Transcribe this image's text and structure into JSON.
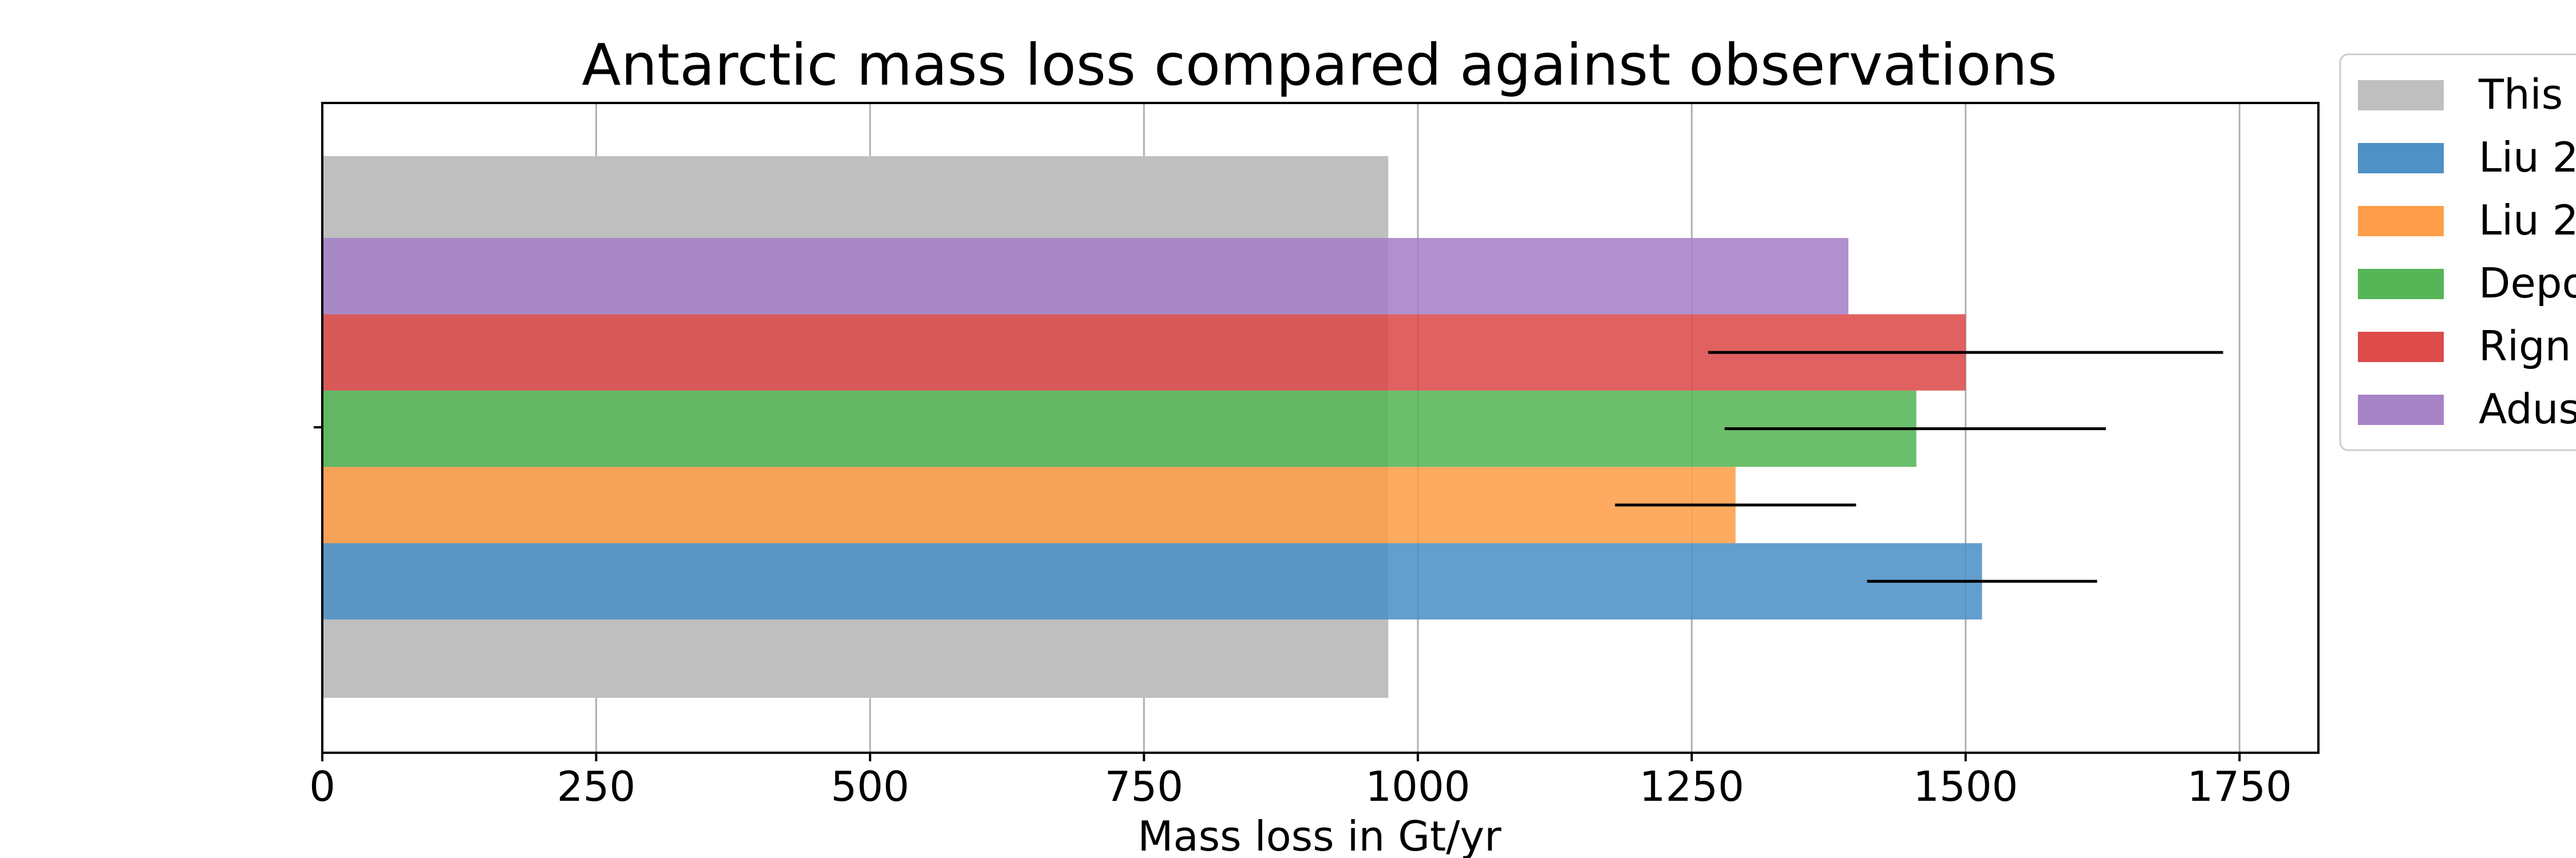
{
  "chart_data": {
    "type": "bar",
    "orientation": "horizontal",
    "title": "Antarctic mass loss compared against observations",
    "xlabel": "Mass loss in Gt/yr",
    "ylabel": "",
    "xlim": [
      0,
      1822
    ],
    "xticks": [
      0,
      250,
      500,
      750,
      1000,
      1250,
      1500,
      1750
    ],
    "grid": "vertical",
    "legend_placement": "outside top-right, truncated",
    "background_bar": {
      "label": "This",
      "value": 973,
      "color": "#bfbfbf"
    },
    "series": [
      {
        "label": "Liu 2",
        "value": 1515,
        "error": [
          1410,
          1620
        ],
        "color": "#4e91c5"
      },
      {
        "label": "Liu 2",
        "value": 1290,
        "error": [
          1180,
          1400
        ],
        "color": "#fe9e4a"
      },
      {
        "label": "Depo",
        "value": 1455,
        "error": [
          1280,
          1628
        ],
        "color": "#56b556"
      },
      {
        "label": "Rign",
        "value": 1500,
        "error": [
          1265,
          1735
        ],
        "color": "#dd4b4b"
      },
      {
        "label": "Adus",
        "value": 1393,
        "error": null,
        "color": "#a682c6"
      }
    ]
  }
}
